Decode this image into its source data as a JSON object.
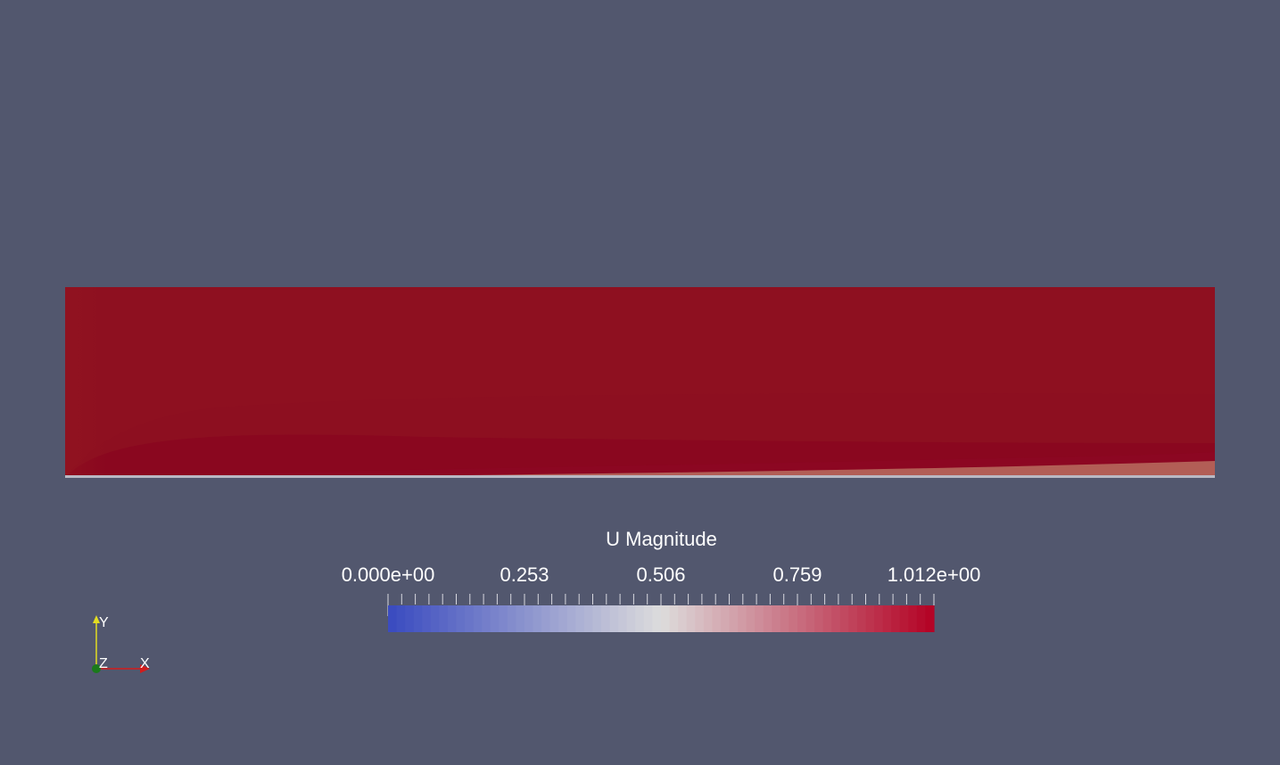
{
  "viewer": {
    "background": "#52576e",
    "domain_color": "#8d0f20"
  },
  "legend": {
    "title": "U Magnitude",
    "tick_labels": [
      "0.000e+00",
      "0.253",
      "0.506",
      "0.759",
      "1.012e+00"
    ],
    "range": [
      0.0,
      1.012
    ],
    "colormap": [
      "#3b4cc0",
      "#dddcdc",
      "#b40426"
    ]
  },
  "axes": {
    "x_label": "X",
    "y_label": "Y",
    "z_label": "Z"
  }
}
